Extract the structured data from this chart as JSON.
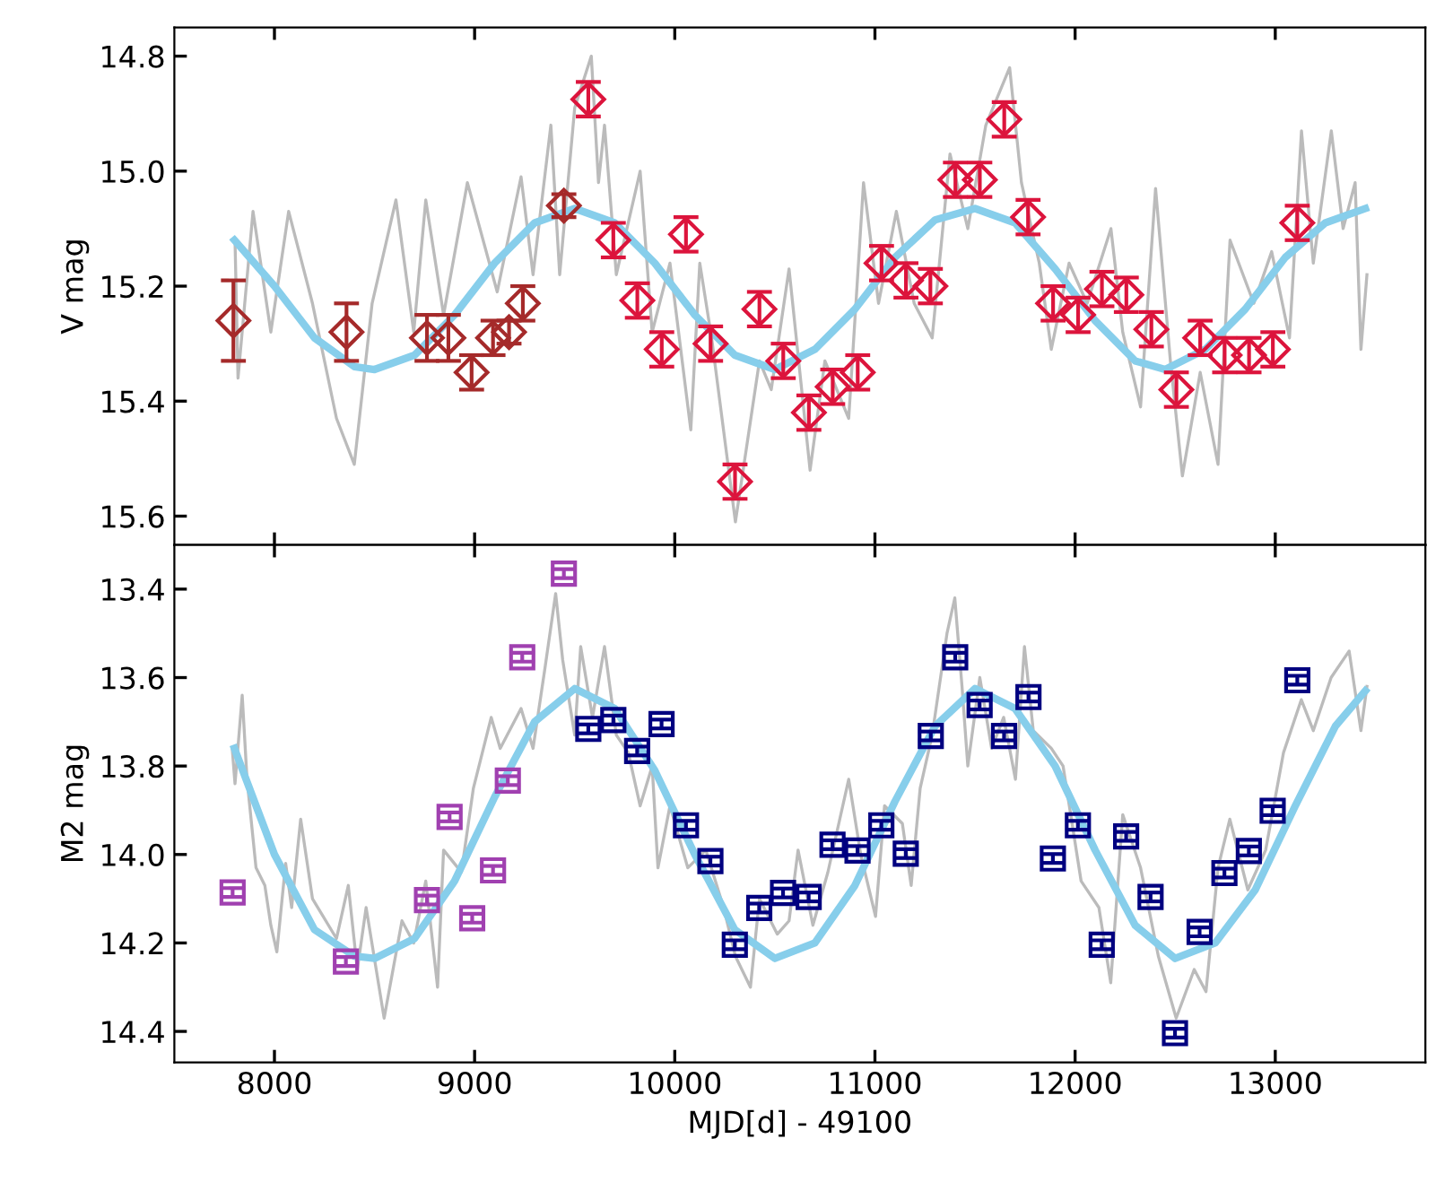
{
  "chart_data": [
    {
      "type": "scatter",
      "ylabel": "V mag",
      "xlim": [
        7500,
        13750
      ],
      "xticks": [
        8000,
        9000,
        10000,
        11000,
        12000,
        13000
      ],
      "ylim": [
        15.65,
        14.75
      ],
      "yticks": [
        {
          "value": 14.8,
          "label": "14.8"
        },
        {
          "value": 15.0,
          "label": "15.0"
        },
        {
          "value": 15.2,
          "label": "15.2"
        },
        {
          "value": 15.4,
          "label": "15.4"
        },
        {
          "value": 15.6,
          "label": "15.6"
        }
      ],
      "tick_labels": "y",
      "grid": false,
      "legend": false,
      "series": [
        {
          "type": "line",
          "color": "#bbbbbb",
          "marker": "none",
          "x": [
            7803,
            7818,
            7893,
            7982,
            8071,
            8190,
            8310,
            8399,
            8488,
            8607,
            8696,
            8756,
            8845,
            8964,
            9113,
            9232,
            9292,
            9381,
            9425,
            9500,
            9583,
            9619,
            9649,
            9708,
            9827,
            9887,
            9976,
            10080,
            10125,
            10184,
            10303,
            10423,
            10482,
            10571,
            10676,
            10750,
            10869,
            10943,
            11018,
            11107,
            11196,
            11286,
            11375,
            11464,
            11554,
            11673,
            11732,
            11821,
            11881,
            11970,
            12060,
            12179,
            12238,
            12327,
            12402,
            12476,
            12536,
            12625,
            12714,
            12774,
            12893,
            12982,
            13071,
            13131,
            13190,
            13280,
            13339,
            13399,
            13428,
            13458
          ],
          "values": [
            15.12,
            15.36,
            15.07,
            15.28,
            15.07,
            15.23,
            15.43,
            15.51,
            15.23,
            15.05,
            15.28,
            15.05,
            15.25,
            15.02,
            15.21,
            15.01,
            15.18,
            14.92,
            15.18,
            14.89,
            14.8,
            15.02,
            14.92,
            15.18,
            15.0,
            15.28,
            15.16,
            15.45,
            15.16,
            15.29,
            15.61,
            15.33,
            15.38,
            15.17,
            15.52,
            15.33,
            15.43,
            15.02,
            15.23,
            15.07,
            15.23,
            15.29,
            14.97,
            15.1,
            14.92,
            14.82,
            15.02,
            15.16,
            15.31,
            15.16,
            15.23,
            15.1,
            15.28,
            15.41,
            15.03,
            15.33,
            15.53,
            15.35,
            15.51,
            15.12,
            15.23,
            15.14,
            15.29,
            14.93,
            15.16,
            14.93,
            15.1,
            15.02,
            15.31,
            15.18
          ]
        },
        {
          "type": "line",
          "color": "#87ceeb",
          "marker": "none",
          "x": [
            7800,
            8000,
            8200,
            8400,
            8500,
            8700,
            8900,
            9100,
            9300,
            9500,
            9700,
            9900,
            10100,
            10300,
            10500,
            10700,
            10900,
            11100,
            11300,
            11500,
            11700,
            11900,
            12100,
            12300,
            12450,
            12650,
            12850,
            13050,
            13250,
            13450
          ],
          "values": [
            15.12,
            15.2,
            15.29,
            15.34,
            15.345,
            15.32,
            15.25,
            15.16,
            15.09,
            15.065,
            15.09,
            15.16,
            15.25,
            15.32,
            15.345,
            15.31,
            15.24,
            15.15,
            15.085,
            15.065,
            15.09,
            15.17,
            15.26,
            15.33,
            15.345,
            15.31,
            15.24,
            15.15,
            15.09,
            15.065
          ]
        },
        {
          "color": "#a52a2a",
          "marker": "diamond",
          "x": [
            7795,
            8360,
            8762,
            8869,
            8985,
            9092,
            9172,
            9241,
            9446
          ],
          "values": [
            15.26,
            15.28,
            15.29,
            15.29,
            15.35,
            15.29,
            15.28,
            15.23,
            15.06
          ],
          "errors": [
            0.07,
            0.05,
            0.04,
            0.04,
            0.03,
            0.03,
            0.02,
            0.03,
            0.02
          ]
        },
        {
          "color": "#dc143c",
          "marker": "diamond",
          "x": [
            9568,
            9693,
            9813,
            9935,
            10056,
            10179,
            10301,
            10423,
            10542,
            10670,
            10789,
            10914,
            11033,
            11155,
            11277,
            11402,
            11524,
            11646,
            11765,
            11890,
            12015,
            12134,
            12256,
            12381,
            12506,
            12625,
            12747,
            12869,
            12988,
            13110
          ],
          "values": [
            14.875,
            15.12,
            15.225,
            15.31,
            15.11,
            15.3,
            15.54,
            15.24,
            15.33,
            15.42,
            15.375,
            15.35,
            15.16,
            15.19,
            15.2,
            15.015,
            15.015,
            14.91,
            15.08,
            15.23,
            15.25,
            15.205,
            15.215,
            15.275,
            15.38,
            15.29,
            15.32,
            15.32,
            15.31,
            15.09
          ],
          "errors": [
            0.03,
            0.03,
            0.03,
            0.03,
            0.03,
            0.03,
            0.03,
            0.03,
            0.03,
            0.03,
            0.03,
            0.03,
            0.03,
            0.03,
            0.03,
            0.03,
            0.03,
            0.03,
            0.03,
            0.03,
            0.03,
            0.03,
            0.03,
            0.03,
            0.03,
            0.03,
            0.03,
            0.03,
            0.03,
            0.03
          ]
        }
      ]
    },
    {
      "type": "scatter",
      "ylabel": "M2 mag",
      "xlabel": "MJD[d] - 49100",
      "xlim": [
        7500,
        13750
      ],
      "xticks": [
        8000,
        9000,
        10000,
        11000,
        12000,
        13000
      ],
      "ylim": [
        14.47,
        13.3
      ],
      "yticks": [
        {
          "value": 13.4,
          "label": "13.4"
        },
        {
          "value": 13.6,
          "label": "13.6"
        },
        {
          "value": 13.8,
          "label": "13.8"
        },
        {
          "value": 14.0,
          "label": "14.0"
        },
        {
          "value": 14.2,
          "label": "14.2"
        },
        {
          "value": 14.4,
          "label": "14.4"
        }
      ],
      "grid": false,
      "legend": false,
      "series": [
        {
          "type": "line",
          "color": "#bbbbbb",
          "marker": "none",
          "x": [
            7789,
            7803,
            7839,
            7863,
            7908,
            7952,
            7982,
            8012,
            8056,
            8086,
            8131,
            8190,
            8310,
            8369,
            8414,
            8458,
            8548,
            8637,
            8696,
            8756,
            8815,
            8845,
            8934,
            8994,
            9083,
            9128,
            9232,
            9292,
            9351,
            9405,
            9440,
            9500,
            9530,
            9589,
            9649,
            9708,
            9768,
            9827,
            9887,
            9916,
            9976,
            10065,
            10155,
            10244,
            10303,
            10378,
            10423,
            10512,
            10571,
            10616,
            10690,
            10765,
            10869,
            10929,
            11003,
            11048,
            11137,
            11181,
            11226,
            11286,
            11360,
            11399,
            11435,
            11464,
            11524,
            11583,
            11643,
            11702,
            11747,
            11791,
            11881,
            11940,
            12030,
            12119,
            12178,
            12238,
            12327,
            12416,
            12505,
            12595,
            12654,
            12714,
            12773,
            12863,
            12952,
            13041,
            13130,
            13190,
            13279,
            13369,
            13428,
            13458
          ],
          "values": [
            13.76,
            13.84,
            13.64,
            13.83,
            14.03,
            14.07,
            14.16,
            14.22,
            14.02,
            14.12,
            13.92,
            14.1,
            14.19,
            14.07,
            14.26,
            14.12,
            14.37,
            14.15,
            14.2,
            14.06,
            14.3,
            13.99,
            14.04,
            13.85,
            13.69,
            13.76,
            13.67,
            13.76,
            13.58,
            13.41,
            13.56,
            13.73,
            13.53,
            13.69,
            13.53,
            13.73,
            13.77,
            13.89,
            13.8,
            14.03,
            13.89,
            14.03,
            13.99,
            14.12,
            14.23,
            14.3,
            14.1,
            14.18,
            14.15,
            13.99,
            14.16,
            14.04,
            13.83,
            14.0,
            14.14,
            13.89,
            13.93,
            14.07,
            13.85,
            13.73,
            13.5,
            13.42,
            13.62,
            13.8,
            13.6,
            13.76,
            13.69,
            13.83,
            13.53,
            13.72,
            13.76,
            13.8,
            14.06,
            14.12,
            14.29,
            13.91,
            14.03,
            14.23,
            14.37,
            14.26,
            14.31,
            14.03,
            13.92,
            14.08,
            13.99,
            13.77,
            13.65,
            13.72,
            13.6,
            13.54,
            13.72,
            13.62
          ]
        },
        {
          "type": "line",
          "color": "#87ceeb",
          "marker": "none",
          "x": [
            7800,
            8000,
            8200,
            8400,
            8500,
            8700,
            8900,
            9100,
            9300,
            9500,
            9700,
            9900,
            10100,
            10300,
            10500,
            10700,
            10900,
            11100,
            11300,
            11500,
            11700,
            11900,
            12100,
            12300,
            12500,
            12700,
            12900,
            13100,
            13300,
            13450
          ],
          "values": [
            13.76,
            14.0,
            14.17,
            14.23,
            14.235,
            14.19,
            14.06,
            13.87,
            13.7,
            13.625,
            13.67,
            13.81,
            14.0,
            14.17,
            14.235,
            14.2,
            14.07,
            13.88,
            13.71,
            13.625,
            13.67,
            13.8,
            13.99,
            14.16,
            14.235,
            14.2,
            14.08,
            13.89,
            13.71,
            13.63
          ]
        },
        {
          "color": "#a040b0",
          "marker": "square",
          "x": [
            7791,
            8357,
            8762,
            8875,
            8988,
            9092,
            9166,
            9238,
            9446
          ],
          "values": [
            14.086,
            14.242,
            14.103,
            13.915,
            14.144,
            14.036,
            13.833,
            13.554,
            13.365
          ],
          "errors": [
            0.01,
            0.01,
            0.01,
            0.01,
            0.01,
            0.01,
            0.01,
            0.01,
            0.01
          ]
        },
        {
          "color": "#000080",
          "marker": "square",
          "x": [
            9568,
            9693,
            9812,
            9934,
            10056,
            10178,
            10300,
            10422,
            10541,
            10669,
            10788,
            10913,
            11032,
            11154,
            11279,
            11401,
            11523,
            11645,
            11767,
            11889,
            12014,
            12133,
            12255,
            12377,
            12499,
            12622,
            12746,
            12868,
            12987,
            13110
          ],
          "values": [
            13.716,
            13.696,
            13.766,
            13.705,
            13.934,
            14.015,
            14.204,
            14.121,
            14.087,
            14.096,
            13.978,
            13.991,
            13.934,
            13.998,
            13.732,
            13.554,
            13.662,
            13.732,
            13.644,
            14.009,
            13.934,
            14.204,
            13.959,
            14.096,
            14.404,
            14.175,
            14.042,
            13.992,
            13.901,
            13.606
          ],
          "errors": [
            0.01,
            0.01,
            0.01,
            0.01,
            0.01,
            0.01,
            0.01,
            0.01,
            0.01,
            0.01,
            0.01,
            0.01,
            0.01,
            0.01,
            0.01,
            0.01,
            0.01,
            0.01,
            0.01,
            0.01,
            0.01,
            0.01,
            0.01,
            0.01,
            0.01,
            0.01,
            0.01,
            0.01,
            0.01,
            0.01
          ]
        }
      ]
    }
  ]
}
